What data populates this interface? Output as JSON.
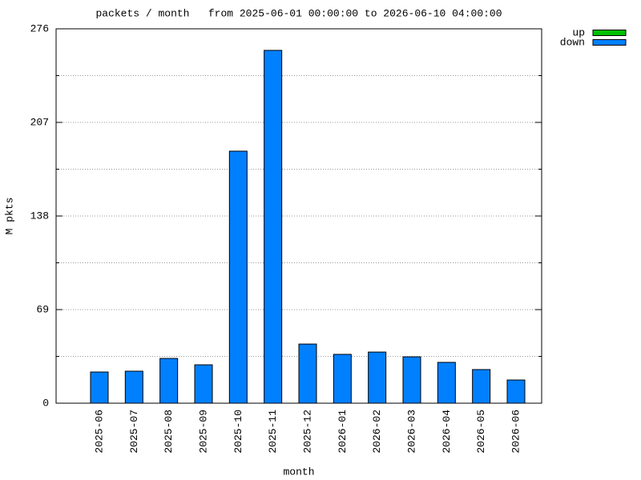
{
  "chart_data": {
    "type": "bar",
    "title": "packets / month   from 2025-06-01 00:00:00 to 2026-06-10 04:00:00",
    "x_label": "month",
    "y_label": "M pkts",
    "categories": [
      "2025-06",
      "2025-07",
      "2025-08",
      "2025-09",
      "2025-10",
      "2025-11",
      "2025-12",
      "2026-01",
      "2026-02",
      "2026-03",
      "2026-04",
      "2026-05",
      "2026-06"
    ],
    "series": [
      {
        "name": "up",
        "color": "#00c000",
        "values": [
          0,
          0,
          0,
          0,
          0,
          0,
          0,
          0,
          0,
          0,
          0,
          0,
          0
        ]
      },
      {
        "name": "down",
        "color": "#0080ff",
        "values": [
          23.0,
          23.6,
          33.0,
          28.3,
          185.8,
          260.1,
          43.6,
          36.0,
          37.7,
          34.2,
          30.1,
          24.8,
          17.1
        ]
      }
    ],
    "ylim": [
      0,
      276
    ],
    "yticks": [
      0,
      69,
      138,
      207,
      276
    ],
    "yminorticks": [
      34.5,
      103.5,
      172.5,
      241.5
    ],
    "grid": true,
    "legend": "top-right"
  }
}
